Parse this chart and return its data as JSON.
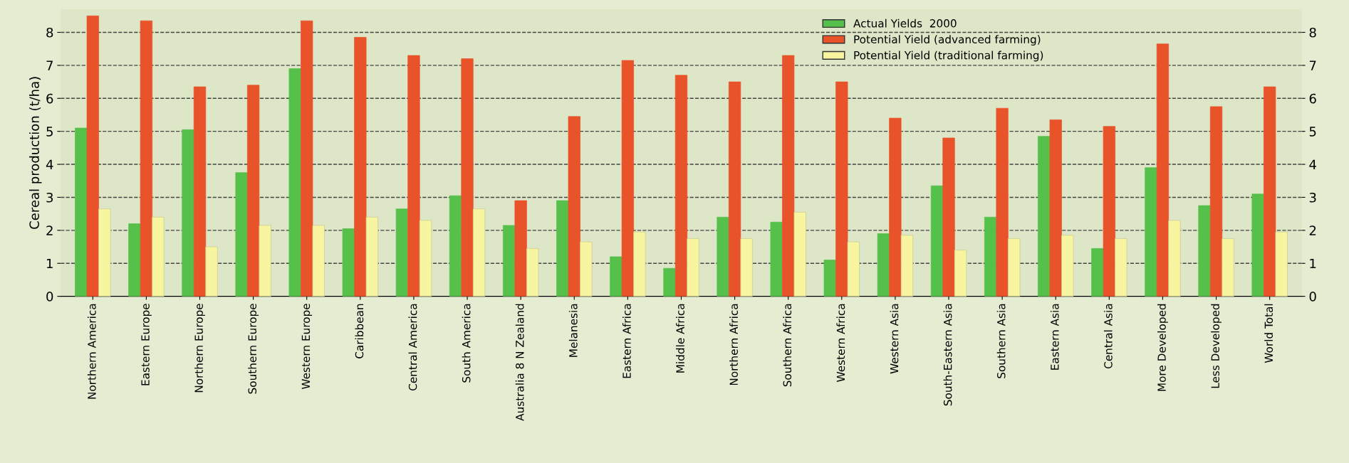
{
  "chart_data": {
    "type": "bar",
    "ylabel": "Cereal production (t/ha)",
    "categories": [
      "Northern America",
      "Eastern Europe",
      "Northern Europe",
      "Southern Europe",
      "Western Europe",
      "Caribbean",
      "Central America",
      "South America",
      "Australia 8 N Zealand",
      "Melanesia",
      "Eastern Africa",
      "Middle Africa",
      "Northern Africa",
      "Southern Africa",
      "Western Africa",
      "Western Asia",
      "South-Eastern Asia",
      "Southern Asia",
      "Eastern Asia",
      "Central Asia",
      "More Developed",
      "Less Developed",
      "World Total"
    ],
    "series": [
      {
        "name": "Actual Yields  2000",
        "color": "#55c04a",
        "values": [
          5.1,
          2.2,
          5.05,
          3.75,
          6.9,
          2.05,
          2.65,
          3.05,
          2.15,
          2.9,
          1.2,
          0.85,
          2.4,
          2.25,
          1.1,
          1.9,
          3.35,
          2.4,
          4.85,
          1.45,
          3.9,
          2.75,
          3.1
        ]
      },
      {
        "name": "Potential Yield (advanced farming)",
        "color": "#e8532a",
        "values": [
          8.5,
          8.35,
          6.35,
          6.4,
          8.35,
          7.85,
          7.3,
          7.2,
          2.9,
          5.45,
          7.15,
          6.7,
          6.5,
          7.3,
          6.5,
          5.4,
          4.8,
          5.7,
          5.35,
          5.15,
          7.65,
          5.75,
          6.35
        ]
      },
      {
        "name": "Potential Yield (traditional farming)",
        "color": "#f8f5a0",
        "values": [
          2.65,
          2.4,
          1.5,
          2.15,
          2.15,
          2.4,
          2.3,
          2.65,
          1.45,
          1.65,
          1.95,
          1.75,
          1.75,
          2.55,
          1.65,
          1.85,
          1.4,
          1.75,
          1.85,
          1.75,
          2.3,
          1.75,
          1.95
        ]
      }
    ],
    "ylim": [
      0,
      8.7
    ],
    "yticks": [
      0,
      1,
      2,
      3,
      4,
      5,
      6,
      7,
      8
    ],
    "y2lim": [
      0,
      8.7
    ],
    "y2ticks": [
      0,
      1,
      2,
      3,
      4,
      5,
      6,
      7,
      8
    ],
    "grid": "y",
    "line_style": "dashed",
    "legend": "top right"
  }
}
